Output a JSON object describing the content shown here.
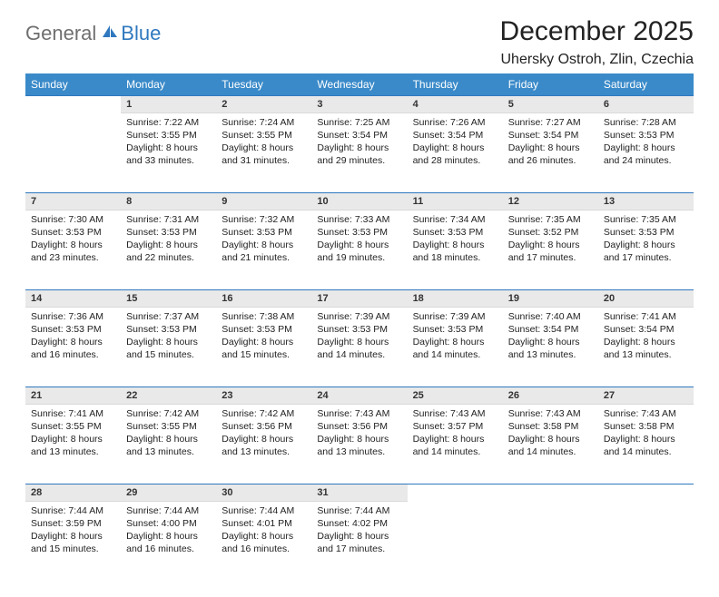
{
  "brand": {
    "general": "General",
    "blue": "Blue",
    "logo_color": "#2f78bf"
  },
  "title": "December 2025",
  "location": "Uhersky Ostroh, Zlin, Czechia",
  "colors": {
    "header_bg": "#3a8ac9",
    "header_fg": "#ffffff",
    "daynum_bg": "#e9e9e9",
    "rule": "#2f78bf",
    "text": "#222222"
  },
  "weekdays": [
    "Sunday",
    "Monday",
    "Tuesday",
    "Wednesday",
    "Thursday",
    "Friday",
    "Saturday"
  ],
  "weeks": [
    [
      null,
      {
        "n": "1",
        "sr": "Sunrise: 7:22 AM",
        "ss": "Sunset: 3:55 PM",
        "dl": "Daylight: 8 hours and 33 minutes."
      },
      {
        "n": "2",
        "sr": "Sunrise: 7:24 AM",
        "ss": "Sunset: 3:55 PM",
        "dl": "Daylight: 8 hours and 31 minutes."
      },
      {
        "n": "3",
        "sr": "Sunrise: 7:25 AM",
        "ss": "Sunset: 3:54 PM",
        "dl": "Daylight: 8 hours and 29 minutes."
      },
      {
        "n": "4",
        "sr": "Sunrise: 7:26 AM",
        "ss": "Sunset: 3:54 PM",
        "dl": "Daylight: 8 hours and 28 minutes."
      },
      {
        "n": "5",
        "sr": "Sunrise: 7:27 AM",
        "ss": "Sunset: 3:54 PM",
        "dl": "Daylight: 8 hours and 26 minutes."
      },
      {
        "n": "6",
        "sr": "Sunrise: 7:28 AM",
        "ss": "Sunset: 3:53 PM",
        "dl": "Daylight: 8 hours and 24 minutes."
      }
    ],
    [
      {
        "n": "7",
        "sr": "Sunrise: 7:30 AM",
        "ss": "Sunset: 3:53 PM",
        "dl": "Daylight: 8 hours and 23 minutes."
      },
      {
        "n": "8",
        "sr": "Sunrise: 7:31 AM",
        "ss": "Sunset: 3:53 PM",
        "dl": "Daylight: 8 hours and 22 minutes."
      },
      {
        "n": "9",
        "sr": "Sunrise: 7:32 AM",
        "ss": "Sunset: 3:53 PM",
        "dl": "Daylight: 8 hours and 21 minutes."
      },
      {
        "n": "10",
        "sr": "Sunrise: 7:33 AM",
        "ss": "Sunset: 3:53 PM",
        "dl": "Daylight: 8 hours and 19 minutes."
      },
      {
        "n": "11",
        "sr": "Sunrise: 7:34 AM",
        "ss": "Sunset: 3:53 PM",
        "dl": "Daylight: 8 hours and 18 minutes."
      },
      {
        "n": "12",
        "sr": "Sunrise: 7:35 AM",
        "ss": "Sunset: 3:52 PM",
        "dl": "Daylight: 8 hours and 17 minutes."
      },
      {
        "n": "13",
        "sr": "Sunrise: 7:35 AM",
        "ss": "Sunset: 3:53 PM",
        "dl": "Daylight: 8 hours and 17 minutes."
      }
    ],
    [
      {
        "n": "14",
        "sr": "Sunrise: 7:36 AM",
        "ss": "Sunset: 3:53 PM",
        "dl": "Daylight: 8 hours and 16 minutes."
      },
      {
        "n": "15",
        "sr": "Sunrise: 7:37 AM",
        "ss": "Sunset: 3:53 PM",
        "dl": "Daylight: 8 hours and 15 minutes."
      },
      {
        "n": "16",
        "sr": "Sunrise: 7:38 AM",
        "ss": "Sunset: 3:53 PM",
        "dl": "Daylight: 8 hours and 15 minutes."
      },
      {
        "n": "17",
        "sr": "Sunrise: 7:39 AM",
        "ss": "Sunset: 3:53 PM",
        "dl": "Daylight: 8 hours and 14 minutes."
      },
      {
        "n": "18",
        "sr": "Sunrise: 7:39 AM",
        "ss": "Sunset: 3:53 PM",
        "dl": "Daylight: 8 hours and 14 minutes."
      },
      {
        "n": "19",
        "sr": "Sunrise: 7:40 AM",
        "ss": "Sunset: 3:54 PM",
        "dl": "Daylight: 8 hours and 13 minutes."
      },
      {
        "n": "20",
        "sr": "Sunrise: 7:41 AM",
        "ss": "Sunset: 3:54 PM",
        "dl": "Daylight: 8 hours and 13 minutes."
      }
    ],
    [
      {
        "n": "21",
        "sr": "Sunrise: 7:41 AM",
        "ss": "Sunset: 3:55 PM",
        "dl": "Daylight: 8 hours and 13 minutes."
      },
      {
        "n": "22",
        "sr": "Sunrise: 7:42 AM",
        "ss": "Sunset: 3:55 PM",
        "dl": "Daylight: 8 hours and 13 minutes."
      },
      {
        "n": "23",
        "sr": "Sunrise: 7:42 AM",
        "ss": "Sunset: 3:56 PM",
        "dl": "Daylight: 8 hours and 13 minutes."
      },
      {
        "n": "24",
        "sr": "Sunrise: 7:43 AM",
        "ss": "Sunset: 3:56 PM",
        "dl": "Daylight: 8 hours and 13 minutes."
      },
      {
        "n": "25",
        "sr": "Sunrise: 7:43 AM",
        "ss": "Sunset: 3:57 PM",
        "dl": "Daylight: 8 hours and 14 minutes."
      },
      {
        "n": "26",
        "sr": "Sunrise: 7:43 AM",
        "ss": "Sunset: 3:58 PM",
        "dl": "Daylight: 8 hours and 14 minutes."
      },
      {
        "n": "27",
        "sr": "Sunrise: 7:43 AM",
        "ss": "Sunset: 3:58 PM",
        "dl": "Daylight: 8 hours and 14 minutes."
      }
    ],
    [
      {
        "n": "28",
        "sr": "Sunrise: 7:44 AM",
        "ss": "Sunset: 3:59 PM",
        "dl": "Daylight: 8 hours and 15 minutes."
      },
      {
        "n": "29",
        "sr": "Sunrise: 7:44 AM",
        "ss": "Sunset: 4:00 PM",
        "dl": "Daylight: 8 hours and 16 minutes."
      },
      {
        "n": "30",
        "sr": "Sunrise: 7:44 AM",
        "ss": "Sunset: 4:01 PM",
        "dl": "Daylight: 8 hours and 16 minutes."
      },
      {
        "n": "31",
        "sr": "Sunrise: 7:44 AM",
        "ss": "Sunset: 4:02 PM",
        "dl": "Daylight: 8 hours and 17 minutes."
      },
      null,
      null,
      null
    ]
  ]
}
